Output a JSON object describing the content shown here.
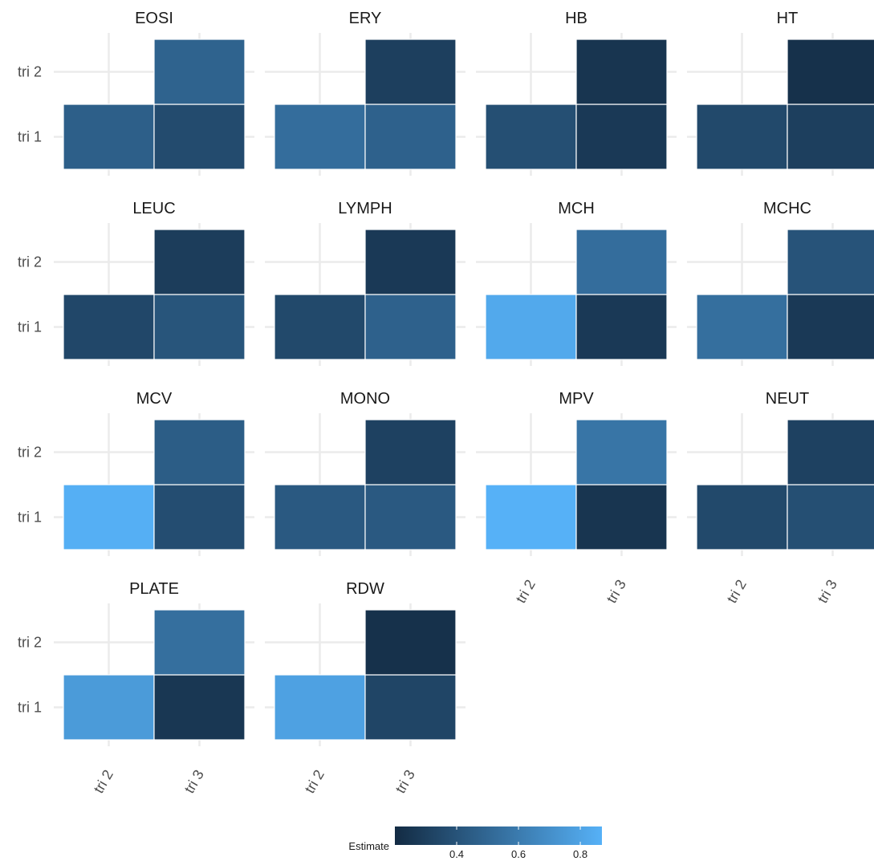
{
  "chart_data": {
    "type": "heatmap",
    "facet_rows": [
      [
        "EOSI",
        "ERY",
        "HB",
        "HT"
      ],
      [
        "LEUC",
        "LYMPH",
        "MCH",
        "MCHC"
      ],
      [
        "MCV",
        "MONO",
        "MPV",
        "NEUT"
      ],
      [
        "PLATE",
        "RDW"
      ]
    ],
    "x_categories": [
      "tri 2",
      "tri 3"
    ],
    "y_categories": [
      "tri 1",
      "tri 2"
    ],
    "panels": [
      {
        "title": "EOSI",
        "cells": [
          {
            "x": "tri 2",
            "y": "tri 1",
            "value": 0.46
          },
          {
            "x": "tri 3",
            "y": "tri 1",
            "value": 0.36
          },
          {
            "x": "tri 3",
            "y": "tri 2",
            "value": 0.48
          }
        ]
      },
      {
        "title": "ERY",
        "cells": [
          {
            "x": "tri 2",
            "y": "tri 1",
            "value": 0.53
          },
          {
            "x": "tri 3",
            "y": "tri 1",
            "value": 0.47
          },
          {
            "x": "tri 3",
            "y": "tri 2",
            "value": 0.3
          }
        ]
      },
      {
        "title": "HB",
        "cells": [
          {
            "x": "tri 2",
            "y": "tri 1",
            "value": 0.38
          },
          {
            "x": "tri 3",
            "y": "tri 1",
            "value": 0.27
          },
          {
            "x": "tri 3",
            "y": "tri 2",
            "value": 0.25
          }
        ]
      },
      {
        "title": "HT",
        "cells": [
          {
            "x": "tri 2",
            "y": "tri 1",
            "value": 0.35
          },
          {
            "x": "tri 3",
            "y": "tri 1",
            "value": 0.3
          },
          {
            "x": "tri 3",
            "y": "tri 2",
            "value": 0.23
          }
        ]
      },
      {
        "title": "LEUC",
        "cells": [
          {
            "x": "tri 2",
            "y": "tri 1",
            "value": 0.34
          },
          {
            "x": "tri 3",
            "y": "tri 1",
            "value": 0.41
          },
          {
            "x": "tri 3",
            "y": "tri 2",
            "value": 0.29
          }
        ]
      },
      {
        "title": "LYMPH",
        "cells": [
          {
            "x": "tri 2",
            "y": "tri 1",
            "value": 0.35
          },
          {
            "x": "tri 3",
            "y": "tri 1",
            "value": 0.47
          },
          {
            "x": "tri 3",
            "y": "tri 2",
            "value": 0.27
          }
        ]
      },
      {
        "title": "MCH",
        "cells": [
          {
            "x": "tri 2",
            "y": "tri 1",
            "value": 0.83
          },
          {
            "x": "tri 3",
            "y": "tri 1",
            "value": 0.27
          },
          {
            "x": "tri 3",
            "y": "tri 2",
            "value": 0.53
          }
        ]
      },
      {
        "title": "MCHC",
        "cells": [
          {
            "x": "tri 2",
            "y": "tri 1",
            "value": 0.54
          },
          {
            "x": "tri 3",
            "y": "tri 1",
            "value": 0.27
          },
          {
            "x": "tri 3",
            "y": "tri 2",
            "value": 0.4
          }
        ]
      },
      {
        "title": "MCV",
        "cells": [
          {
            "x": "tri 2",
            "y": "tri 1",
            "value": 0.86
          },
          {
            "x": "tri 3",
            "y": "tri 1",
            "value": 0.37
          },
          {
            "x": "tri 3",
            "y": "tri 2",
            "value": 0.45
          }
        ]
      },
      {
        "title": "MONO",
        "cells": [
          {
            "x": "tri 2",
            "y": "tri 1",
            "value": 0.43
          },
          {
            "x": "tri 3",
            "y": "tri 1",
            "value": 0.43
          },
          {
            "x": "tri 3",
            "y": "tri 2",
            "value": 0.31
          }
        ]
      },
      {
        "title": "MPV",
        "cells": [
          {
            "x": "tri 2",
            "y": "tri 1",
            "value": 0.87
          },
          {
            "x": "tri 3",
            "y": "tri 1",
            "value": 0.25
          },
          {
            "x": "tri 3",
            "y": "tri 2",
            "value": 0.57
          }
        ]
      },
      {
        "title": "NEUT",
        "cells": [
          {
            "x": "tri 2",
            "y": "tri 1",
            "value": 0.35
          },
          {
            "x": "tri 3",
            "y": "tri 1",
            "value": 0.38
          },
          {
            "x": "tri 3",
            "y": "tri 2",
            "value": 0.31
          }
        ]
      },
      {
        "title": "PLATE",
        "cells": [
          {
            "x": "tri 2",
            "y": "tri 1",
            "value": 0.76
          },
          {
            "x": "tri 3",
            "y": "tri 1",
            "value": 0.26
          },
          {
            "x": "tri 3",
            "y": "tri 2",
            "value": 0.54
          }
        ]
      },
      {
        "title": "RDW",
        "cells": [
          {
            "x": "tri 2",
            "y": "tri 1",
            "value": 0.79
          },
          {
            "x": "tri 3",
            "y": "tri 1",
            "value": 0.33
          },
          {
            "x": "tri 3",
            "y": "tri 2",
            "value": 0.23
          }
        ]
      }
    ],
    "legend": {
      "title": "Estimate",
      "position": "bottom",
      "range": [
        0.2,
        0.87
      ],
      "ticks": [
        0.4,
        0.6,
        0.8
      ],
      "tick_labels": [
        "0.4",
        "0.6",
        "0.8"
      ],
      "color_low": "#132b43",
      "color_high": "#56b1f7"
    },
    "grid": true
  }
}
